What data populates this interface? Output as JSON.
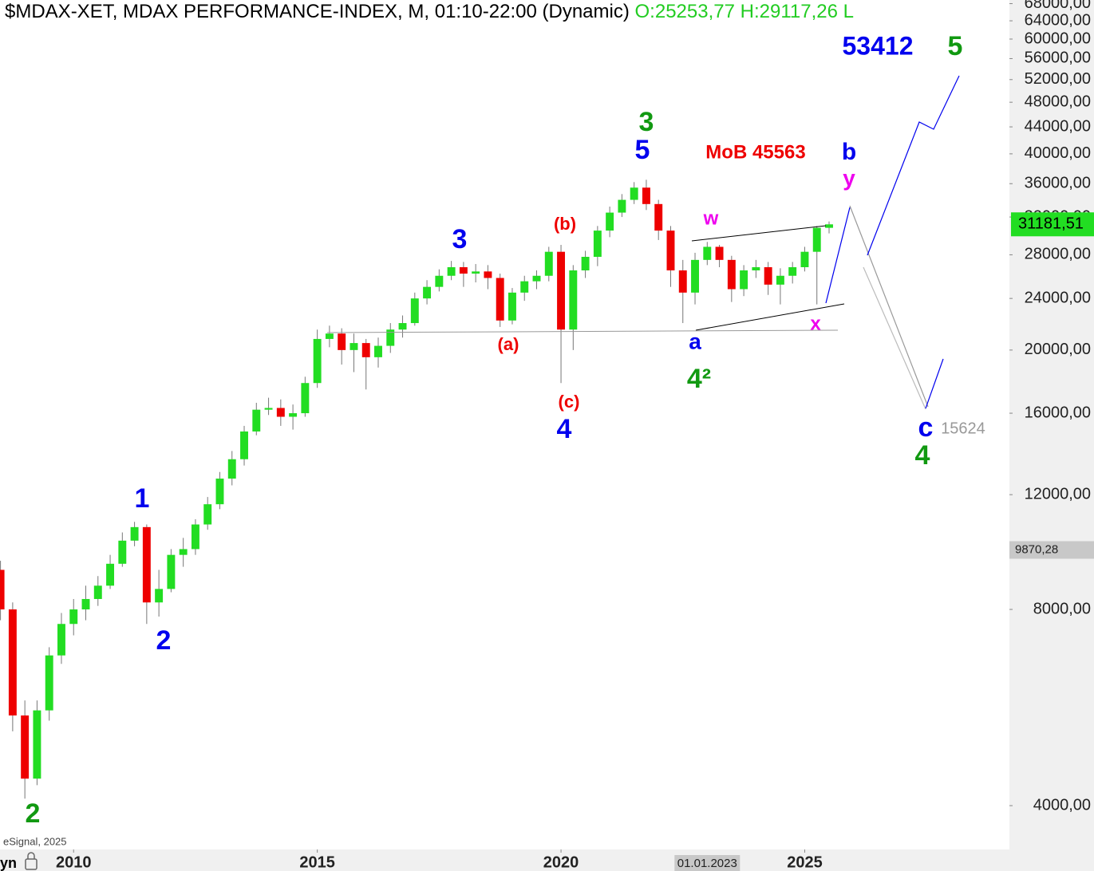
{
  "chart_data": {
    "type": "candlestick",
    "title": "$MDAX-XET, MDAX PERFORMANCE-INDEX, M, 01:10-22:00 (Dynamic)",
    "quote": "O:25253,77 H:29117,26 L",
    "source": "eSignal, 2025",
    "corner_label": "yn",
    "log_scale": true,
    "grid": false,
    "up_color": "#22dd22",
    "down_color": "#ee0000",
    "x": [
      2008.5,
      2008.75,
      2009,
      2009.25,
      2009.5,
      2009.75,
      2010,
      2010.25,
      2010.5,
      2010.75,
      2011,
      2011.25,
      2011.5,
      2011.75,
      2012,
      2012.25,
      2012.5,
      2012.75,
      2013,
      2013.25,
      2013.5,
      2013.75,
      2014,
      2014.25,
      2014.5,
      2014.75,
      2015,
      2015.25,
      2015.5,
      2015.75,
      2016,
      2016.25,
      2016.5,
      2016.75,
      2017,
      2017.25,
      2017.5,
      2017.75,
      2018,
      2018.25,
      2018.5,
      2018.75,
      2019,
      2019.25,
      2019.5,
      2019.75,
      2020,
      2020.25,
      2020.5,
      2020.75,
      2021,
      2021.25,
      2021.5,
      2021.75,
      2022,
      2022.25,
      2022.5,
      2022.75,
      2023,
      2023.25,
      2023.5,
      2023.75,
      2024,
      2024.25,
      2024.5,
      2024.75,
      2025,
      2025.25,
      2025.5
    ],
    "open": [
      9200,
      8000,
      5500,
      4400,
      5600,
      6800,
      7600,
      8000,
      8300,
      8700,
      9400,
      10200,
      10700,
      8200,
      8600,
      9700,
      9900,
      10800,
      11600,
      12700,
      13600,
      15000,
      16200,
      16300,
      15800,
      16000,
      17800,
      20800,
      21200,
      20000,
      20500,
      19500,
      20300,
      21500,
      22000,
      24000,
      25000,
      26000,
      26800,
      26200,
      26400,
      25800,
      22200,
      24500,
      25500,
      26000,
      28300,
      21500,
      26500,
      27800,
      30500,
      32500,
      34000,
      35500,
      33500,
      30500,
      26500,
      24500,
      27500,
      28800,
      27500,
      24800,
      26500,
      26800,
      25200,
      26000,
      26800,
      28300,
      30800
    ],
    "high": [
      9500,
      8200,
      5800,
      5800,
      7000,
      7900,
      8300,
      8700,
      9000,
      9700,
      10500,
      10900,
      10800,
      9200,
      9900,
      10300,
      11000,
      11900,
      13000,
      14000,
      15300,
      16600,
      16900,
      16800,
      16500,
      18200,
      21500,
      21800,
      21600,
      21200,
      20800,
      20900,
      22000,
      22600,
      24500,
      25600,
      26600,
      27400,
      27300,
      27100,
      27000,
      26200,
      24900,
      26000,
      26500,
      28800,
      29000,
      27000,
      28400,
      31000,
      33200,
      34700,
      36200,
      36500,
      34000,
      31000,
      27500,
      28200,
      29300,
      29000,
      27900,
      27000,
      27500,
      27300,
      26700,
      27300,
      28800,
      31000,
      31500
    ],
    "low": [
      7700,
      5200,
      4100,
      4300,
      5400,
      6600,
      7300,
      7700,
      8100,
      8600,
      9300,
      10000,
      7600,
      7800,
      8500,
      9300,
      9700,
      10600,
      11400,
      12400,
      13300,
      14800,
      15900,
      15300,
      15100,
      15800,
      17500,
      20200,
      19000,
      18500,
      17400,
      18800,
      19800,
      20900,
      21800,
      23500,
      24600,
      25600,
      25000,
      25400,
      24800,
      21700,
      21900,
      23800,
      24800,
      25500,
      17800,
      20000,
      25800,
      26900,
      29800,
      32000,
      33500,
      32800,
      29500,
      25000,
      22000,
      23500,
      27000,
      26800,
      23700,
      24200,
      25800,
      24300,
      23500,
      25300,
      26400,
      23500,
      30200
    ],
    "close": [
      8000,
      5500,
      4400,
      5600,
      6800,
      7600,
      8000,
      8300,
      8700,
      9400,
      10200,
      10700,
      8200,
      8600,
      9700,
      9900,
      10800,
      11600,
      12700,
      13600,
      15000,
      16200,
      16300,
      15800,
      16000,
      17800,
      20800,
      21200,
      20000,
      20500,
      19500,
      20300,
      21500,
      22000,
      24000,
      25000,
      26000,
      26800,
      26200,
      26400,
      25800,
      22200,
      24500,
      25500,
      26000,
      28300,
      21500,
      26500,
      27800,
      30500,
      32500,
      34000,
      35500,
      33500,
      30500,
      26500,
      24500,
      27500,
      28800,
      27500,
      24800,
      26500,
      26800,
      25200,
      26000,
      26800,
      28300,
      30800,
      31180
    ],
    "xlim": [
      2008.49,
      2029.2
    ],
    "xticks": [
      2010,
      2015,
      2020,
      2025
    ],
    "cursor_date": {
      "value": 2023,
      "label": "01.01.2023"
    },
    "ylim": [
      3426,
      68880
    ],
    "yticks": [
      {
        "value": 4000,
        "label": "4000,00"
      },
      {
        "value": 8000,
        "label": "8000,00"
      },
      {
        "value": 12000,
        "label": "12000,00"
      },
      {
        "value": 16000,
        "label": "16000,00"
      },
      {
        "value": 20000,
        "label": "20000,00"
      },
      {
        "value": 24000,
        "label": "24000,00"
      },
      {
        "value": 28000,
        "label": "28000,00"
      },
      {
        "value": 32000,
        "label": "32000,00"
      },
      {
        "value": 36000,
        "label": "36000,00"
      },
      {
        "value": 40000,
        "label": "40000,00"
      },
      {
        "value": 44000,
        "label": "44000,00"
      },
      {
        "value": 48000,
        "label": "48000,00"
      },
      {
        "value": 52000,
        "label": "52000,00"
      },
      {
        "value": 56000,
        "label": "56000,00"
      },
      {
        "value": 60000,
        "label": "60000,00"
      },
      {
        "value": 64000,
        "label": "64000,00"
      },
      {
        "value": 68000,
        "label": "68000,00"
      }
    ],
    "crosshair_price": {
      "value": 9870.28,
      "label": "9870,28"
    },
    "current_price": {
      "value": 31181.51,
      "label": "31181,51"
    },
    "annotations": [
      {
        "text": "1",
        "color": "#0000ee"
      },
      {
        "text": "2",
        "color": "#0000ee"
      },
      {
        "text": "2",
        "color": "#119911"
      },
      {
        "text": "3",
        "color": "#0000ee"
      },
      {
        "text": "(a)",
        "color": "#ee0000"
      },
      {
        "text": "(b)",
        "color": "#ee0000"
      },
      {
        "text": "(c)",
        "color": "#ee0000"
      },
      {
        "text": "4",
        "color": "#0000ee"
      },
      {
        "text": "3",
        "color": "#119911"
      },
      {
        "text": "5",
        "color": "#0000ee"
      },
      {
        "text": "MoB 45563",
        "color": "#ee0000"
      },
      {
        "text": "w",
        "color": "#ee00ee"
      },
      {
        "text": "a",
        "color": "#0000ee"
      },
      {
        "text": "4²",
        "color": "#119911"
      },
      {
        "text": "x",
        "color": "#ee00ee"
      },
      {
        "text": "b",
        "color": "#0000ee"
      },
      {
        "text": "y",
        "color": "#ee00ee"
      },
      {
        "text": "53412",
        "color": "#0000ee"
      },
      {
        "text": "5",
        "color": "#119911"
      },
      {
        "text": "c",
        "color": "#0000ee"
      },
      {
        "text": "15624",
        "color": "#999999"
      },
      {
        "text": "4",
        "color": "#119911"
      }
    ]
  }
}
